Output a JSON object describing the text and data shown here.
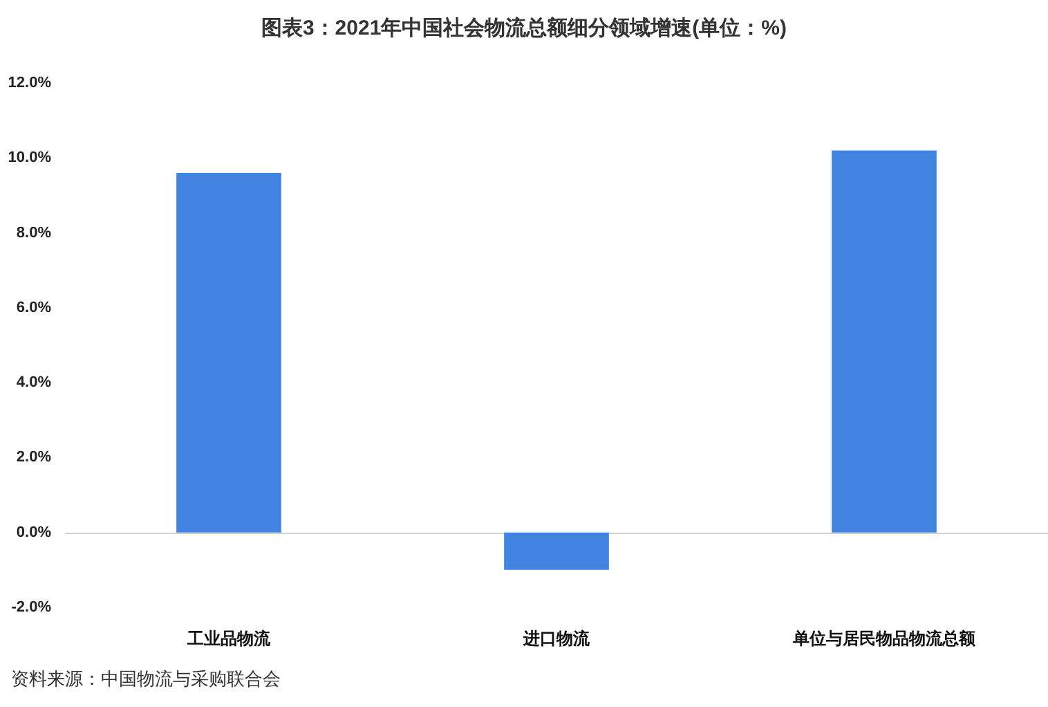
{
  "chart_data": {
    "type": "bar",
    "title": "图表3：2021年中国社会物流总额细分领域增速(单位：%)",
    "categories": [
      "工业品物流",
      "进口物流",
      "单位与居民物品物流总额"
    ],
    "values": [
      9.6,
      -1.0,
      10.2
    ],
    "color": "#4285e0",
    "ylim": [
      -2,
      12
    ],
    "yticks": [
      {
        "value": -2,
        "label": "-2.0%"
      },
      {
        "value": 0,
        "label": "0.0%"
      },
      {
        "value": 2,
        "label": "2.0%"
      },
      {
        "value": 4,
        "label": "4.0%"
      },
      {
        "value": 6,
        "label": "6.0%"
      },
      {
        "value": 8,
        "label": "8.0%"
      },
      {
        "value": 10,
        "label": "10.0%"
      },
      {
        "value": 12,
        "label": "12.0%"
      }
    ],
    "ref_lines": [
      {
        "axis": "y",
        "value": 0,
        "color": "#d0d0d0"
      }
    ],
    "annotations": [
      "资料来源：中国物流与采购联合会"
    ]
  }
}
